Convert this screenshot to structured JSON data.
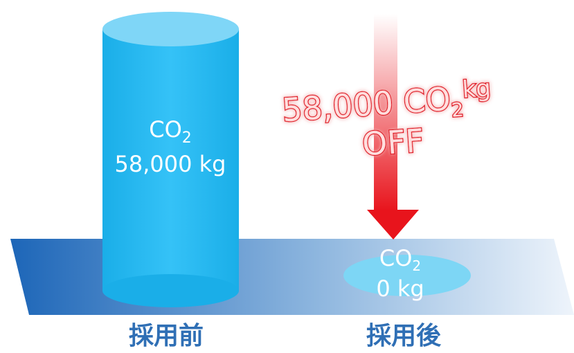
{
  "before": {
    "co2": "CO",
    "co2_sub": "2",
    "amount": "58,000 kg",
    "label": "採用前"
  },
  "after": {
    "co2": "CO",
    "co2_sub": "2",
    "amount": "0 kg",
    "label": "採用後"
  },
  "reduction": {
    "amount": "58,000 CO",
    "sub": "2",
    "unit": "kg",
    "off": "OFF"
  }
}
